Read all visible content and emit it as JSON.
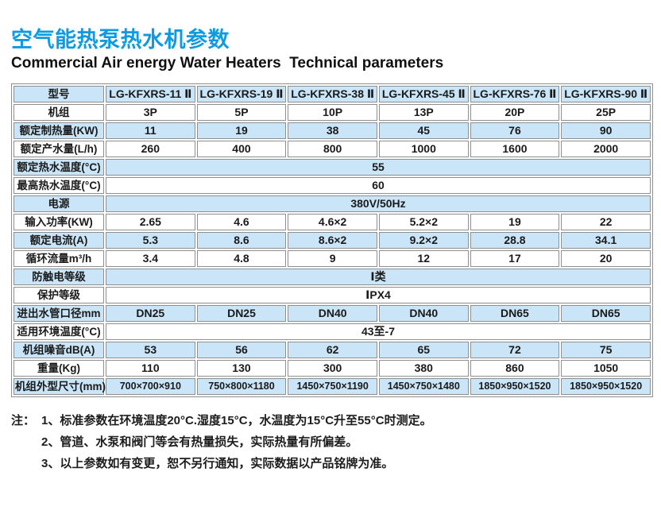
{
  "page": {
    "title": "空气能热泵热水机参数",
    "subtitle": "Commercial Air energy Water Heaters  Technical parameters"
  },
  "colors": {
    "accent_blue": "#0e9be1",
    "stripe_blue": "#c9e5f7",
    "border_gray": "#8e8e8e"
  },
  "table": {
    "corner_label": "型号",
    "models": [
      "LG-KFXRS-11 Ⅱ",
      "LG-KFXRS-19 Ⅱ",
      "LG-KFXRS-38 Ⅱ",
      "LG-KFXRS-45 Ⅱ",
      "LG-KFXRS-76 Ⅱ",
      "LG-KFXRS-90 Ⅱ"
    ],
    "rows": [
      {
        "label": "机组",
        "values": [
          "3P",
          "5P",
          "10P",
          "13P",
          "20P",
          "25P"
        ]
      },
      {
        "label": "额定制热量(KW)",
        "values": [
          "11",
          "19",
          "38",
          "45",
          "76",
          "90"
        ]
      },
      {
        "label": "额定产水量(L/h)",
        "values": [
          "260",
          "400",
          "800",
          "1000",
          "1600",
          "2000"
        ]
      },
      {
        "label": "额定热水温度(°C)",
        "merged": "55"
      },
      {
        "label": "最高热水温度(°C)",
        "merged": "60"
      },
      {
        "label": "电源",
        "merged": "380V/50Hz"
      },
      {
        "label": "输入功率(KW)",
        "values": [
          "2.65",
          "4.6",
          "4.6×2",
          "5.2×2",
          "19",
          "22"
        ]
      },
      {
        "label": "额定电流(A)",
        "values": [
          "5.3",
          "8.6",
          "8.6×2",
          "9.2×2",
          "28.8",
          "34.1"
        ]
      },
      {
        "label": "循环流量m³/h",
        "values": [
          "3.4",
          "4.8",
          "9",
          "12",
          "17",
          "20"
        ]
      },
      {
        "label": "防触电等级",
        "merged": "Ⅰ类"
      },
      {
        "label": "保护等级",
        "merged": "ⅠPX4"
      },
      {
        "label": "进出水管口径mm",
        "values": [
          "DN25",
          "DN25",
          "DN40",
          "DN40",
          "DN65",
          "DN65"
        ]
      },
      {
        "label": "适用环境温度(°C)",
        "merged": "43至-7"
      },
      {
        "label": "机组噪音dB(A)",
        "values": [
          "53",
          "56",
          "62",
          "65",
          "72",
          "75"
        ]
      },
      {
        "label": "重量(Kg)",
        "values": [
          "110",
          "130",
          "300",
          "380",
          "860",
          "1050"
        ]
      },
      {
        "label": "机组外型尺寸(mm)",
        "values": [
          "700×700×910",
          "750×800×1180",
          "1450×750×1190",
          "1450×750×1480",
          "1850×950×1520",
          "1850×950×1520"
        ]
      }
    ]
  },
  "notes": {
    "label": "注：",
    "items": [
      "1、标准参数在环境温度20°C.湿度15°C，水温度为15°C升至55°C时测定。",
      "2、管道、水泵和阀门等会有热量损失，实际热量有所偏差。",
      "3、以上参数如有变更，恕不另行通知，实际数据以产品铭牌为准。"
    ]
  }
}
